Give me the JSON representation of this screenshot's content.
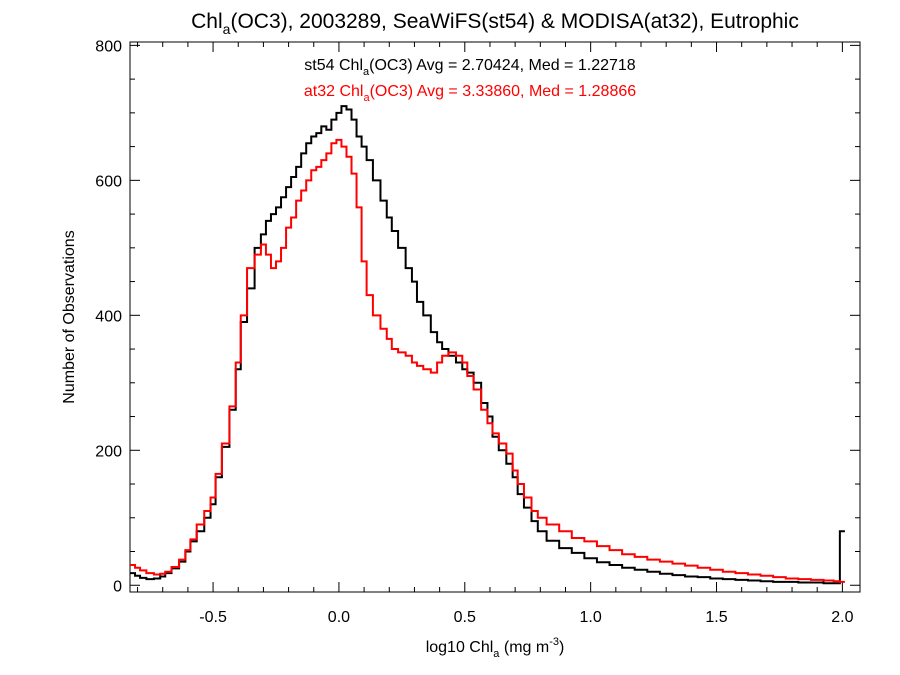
{
  "chart_data": {
    "type": "line",
    "title_parts": {
      "pre": "Chl",
      "sub": "a",
      "post": "(OC3), 2003289, SeaWiFS(st54) & MODISA(at32), Eutrophic"
    },
    "xlabel_parts": {
      "pre": "log10 Chl",
      "sub": "a",
      "mid": " (mg m",
      "sup": "-3",
      "post": ")"
    },
    "ylabel": "Number of Observations",
    "xlim": [
      -0.83,
      2.07
    ],
    "ylim": [
      -10,
      805
    ],
    "xticks": [
      -0.5,
      0.0,
      0.5,
      1.0,
      1.5,
      2.0
    ],
    "xtick_labels": [
      "-0.5",
      "0.0",
      "0.5",
      "1.0",
      "1.5",
      "2.0"
    ],
    "yticks": [
      0,
      200,
      400,
      600,
      800
    ],
    "ytick_labels": [
      "0",
      "200",
      "400",
      "600",
      "800"
    ],
    "step_histogram": true,
    "annotations": [
      {
        "id": "st54",
        "color": "#000000",
        "pre": "st54 Chl",
        "sub": "a",
        "post": "(OC3) Avg = 2.70424, Med = 1.22718"
      },
      {
        "id": "at32",
        "color": "#ff0000",
        "pre": "at32 Chl",
        "sub": "a",
        "post": "(OC3) Avg = 3.33860, Med = 1.28866"
      }
    ],
    "series": [
      {
        "id": "st54",
        "color": "#000000",
        "x": [
          -0.82,
          -0.8,
          -0.78,
          -0.75,
          -0.72,
          -0.7,
          -0.68,
          -0.65,
          -0.62,
          -0.6,
          -0.58,
          -0.55,
          -0.52,
          -0.5,
          -0.48,
          -0.45,
          -0.42,
          -0.4,
          -0.38,
          -0.35,
          -0.32,
          -0.3,
          -0.28,
          -0.26,
          -0.24,
          -0.22,
          -0.2,
          -0.18,
          -0.16,
          -0.14,
          -0.12,
          -0.1,
          -0.08,
          -0.06,
          -0.04,
          -0.02,
          0.0,
          0.02,
          0.04,
          0.06,
          0.08,
          0.1,
          0.12,
          0.15,
          0.18,
          0.2,
          0.22,
          0.25,
          0.28,
          0.3,
          0.32,
          0.35,
          0.38,
          0.4,
          0.42,
          0.45,
          0.48,
          0.5,
          0.52,
          0.55,
          0.58,
          0.6,
          0.62,
          0.65,
          0.68,
          0.7,
          0.72,
          0.75,
          0.78,
          0.8,
          0.85,
          0.9,
          0.95,
          1.0,
          1.05,
          1.1,
          1.15,
          1.2,
          1.25,
          1.3,
          1.35,
          1.4,
          1.45,
          1.5,
          1.55,
          1.6,
          1.65,
          1.7,
          1.75,
          1.8,
          1.85,
          1.9,
          1.95,
          1.98,
          2.0
        ],
        "y": [
          18,
          14,
          11,
          9,
          10,
          13,
          18,
          25,
          35,
          50,
          65,
          80,
          100,
          120,
          160,
          205,
          260,
          320,
          390,
          440,
          500,
          520,
          540,
          550,
          560,
          575,
          590,
          605,
          620,
          640,
          655,
          665,
          670,
          680,
          675,
          690,
          700,
          710,
          705,
          690,
          665,
          650,
          630,
          600,
          570,
          545,
          525,
          500,
          470,
          450,
          420,
          400,
          375,
          360,
          350,
          340,
          330,
          320,
          315,
          300,
          270,
          250,
          220,
          200,
          180,
          160,
          135,
          115,
          95,
          80,
          66,
          55,
          48,
          40,
          34,
          30,
          26,
          23,
          20,
          17,
          15,
          13,
          12,
          10,
          9,
          8,
          7,
          6,
          5,
          5,
          4,
          4,
          3,
          3,
          80
        ]
      },
      {
        "id": "at32",
        "color": "#ff0000",
        "x": [
          -0.82,
          -0.8,
          -0.78,
          -0.75,
          -0.72,
          -0.7,
          -0.68,
          -0.65,
          -0.62,
          -0.6,
          -0.58,
          -0.55,
          -0.52,
          -0.5,
          -0.48,
          -0.45,
          -0.42,
          -0.4,
          -0.38,
          -0.35,
          -0.32,
          -0.3,
          -0.28,
          -0.26,
          -0.24,
          -0.22,
          -0.2,
          -0.18,
          -0.16,
          -0.14,
          -0.12,
          -0.1,
          -0.08,
          -0.06,
          -0.04,
          -0.02,
          0.0,
          0.02,
          0.04,
          0.06,
          0.08,
          0.1,
          0.12,
          0.15,
          0.18,
          0.2,
          0.22,
          0.25,
          0.28,
          0.3,
          0.32,
          0.35,
          0.38,
          0.4,
          0.42,
          0.45,
          0.48,
          0.5,
          0.52,
          0.55,
          0.58,
          0.6,
          0.62,
          0.65,
          0.68,
          0.7,
          0.72,
          0.75,
          0.78,
          0.8,
          0.85,
          0.9,
          0.95,
          1.0,
          1.05,
          1.1,
          1.15,
          1.2,
          1.25,
          1.3,
          1.35,
          1.4,
          1.45,
          1.5,
          1.55,
          1.6,
          1.65,
          1.7,
          1.75,
          1.8,
          1.85,
          1.9,
          1.95,
          1.98,
          2.0
        ],
        "y": [
          30,
          26,
          22,
          18,
          16,
          17,
          20,
          27,
          38,
          52,
          68,
          90,
          110,
          130,
          165,
          210,
          265,
          330,
          400,
          470,
          490,
          505,
          490,
          470,
          480,
          500,
          530,
          545,
          570,
          585,
          600,
          615,
          620,
          630,
          640,
          655,
          660,
          650,
          635,
          610,
          560,
          480,
          430,
          400,
          380,
          365,
          350,
          345,
          340,
          330,
          325,
          320,
          315,
          330,
          340,
          345,
          340,
          330,
          310,
          290,
          260,
          240,
          225,
          210,
          195,
          170,
          150,
          130,
          110,
          100,
          90,
          80,
          70,
          65,
          58,
          52,
          46,
          42,
          38,
          35,
          32,
          29,
          26,
          23,
          20,
          18,
          16,
          14,
          12,
          10,
          9,
          8,
          7,
          6,
          5
        ]
      }
    ]
  }
}
